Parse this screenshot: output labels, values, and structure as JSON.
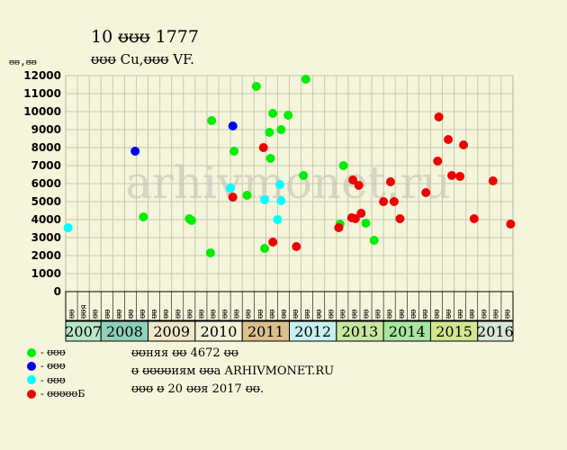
{
  "header": {
    "title": "10 ᵿᵿᵿ 1777",
    "subtitle": "ᵿᵿᵿ Cu,ᵿᵿᵿ VF.",
    "y_unit": "ᵿᵿ,ᵿᵿ"
  },
  "watermark": "arhivmonet.ru",
  "legend": [
    {
      "label": "- ᵿᵿᵿ",
      "color": "#00ee00",
      "icon": "dot-green"
    },
    {
      "label": "- ᵿᵿᵿ",
      "color": "#0000ee",
      "icon": "dot-blue"
    },
    {
      "label": "- ᵿᵿᵿ",
      "color": "#00ffff",
      "icon": "dot-cyan"
    },
    {
      "label": "- ᵿᵿᵿᵿᵿБ",
      "color": "#ee0000",
      "icon": "dot-red"
    }
  ],
  "notes": [
    "ᵿᵿняя ᵿᵿ 4672 ᵿᵿ",
    "ᵿ ᵿᵿᵿᵿиям ᵿᵿа ARHIVMONET.RU",
    "ᵿᵿᵿ ᵿ 20 ᵿᵿя 2017 ᵿᵿ."
  ],
  "chart_data": {
    "type": "scatter",
    "ylim": [
      0,
      12000
    ],
    "yticks": [
      0,
      1000,
      2000,
      3000,
      4000,
      5000,
      6000,
      7000,
      8000,
      9000,
      10000,
      11000,
      12000
    ],
    "grid": true,
    "x_slots": 38,
    "x_slot_labels": [
      "ᵿᵿ",
      "ᵿᵿя",
      "ᵿᵿ",
      "ᵿᵿ",
      "ᵿᵿ",
      "ᵿᵿ",
      "ᵿᵿ",
      "ᵿᵿ",
      "ᵿᵿ",
      "ᵿᵿ",
      "ᵿᵿ",
      "ᵿᵿ",
      "ᵿᵿ",
      "ᵿᵿ",
      "ᵿᵿ",
      "ᵿᵿ",
      "ᵿᵿ",
      "ᵿᵿ",
      "ᵿᵿ",
      "ᵿᵿ",
      "ᵿᵿ",
      "ᵿᵿ",
      "ᵿᵿ",
      "ᵿᵿ",
      "ᵿᵿ",
      "ᵿᵿ",
      "ᵿᵿ",
      "ᵿᵿ",
      "ᵿᵿ",
      "ᵿᵿ",
      "ᵿᵿ",
      "ᵿᵿ",
      "ᵿᵿ",
      "ᵿᵿ",
      "ᵿᵿ",
      "ᵿᵿ",
      "ᵿᵿ",
      "ᵿᵿ"
    ],
    "years": [
      {
        "label": "2007",
        "start": 0,
        "end": 3,
        "color": "#b8e6c8"
      },
      {
        "label": "2008",
        "start": 3,
        "end": 7,
        "color": "#8fd1b8"
      },
      {
        "label": "2009",
        "start": 7,
        "end": 11,
        "color": "#f0e6c8"
      },
      {
        "label": "2010",
        "start": 11,
        "end": 15,
        "color": "#f0f0d8"
      },
      {
        "label": "2011",
        "start": 15,
        "end": 19,
        "color": "#d9c08c"
      },
      {
        "label": "2012",
        "start": 19,
        "end": 23,
        "color": "#c8f0f0"
      },
      {
        "label": "2013",
        "start": 23,
        "end": 27,
        "color": "#c8e6a0"
      },
      {
        "label": "2014",
        "start": 27,
        "end": 31,
        "color": "#a8e6a0"
      },
      {
        "label": "2015",
        "start": 31,
        "end": 35,
        "color": "#d2e68c"
      },
      {
        "label": "2016",
        "start": 35,
        "end": 38,
        "color": "#d8e8d8"
      }
    ],
    "series": [
      {
        "color": "#00ee00",
        "points": [
          [
            6.6,
            4150
          ],
          [
            10.5,
            4050
          ],
          [
            10.7,
            3950
          ],
          [
            12.3,
            2150
          ],
          [
            12.4,
            9500
          ],
          [
            14.3,
            7800
          ],
          [
            15.4,
            5350
          ],
          [
            16.2,
            11400
          ],
          [
            16.9,
            2400
          ],
          [
            17.3,
            8850
          ],
          [
            17.4,
            7400
          ],
          [
            17.6,
            9900
          ],
          [
            18.3,
            9000
          ],
          [
            18.9,
            9800
          ],
          [
            20.2,
            6450
          ],
          [
            20.4,
            11800
          ],
          [
            23.3,
            3750
          ],
          [
            23.6,
            7000
          ],
          [
            25.5,
            3800
          ],
          [
            26.2,
            2850
          ]
        ]
      },
      {
        "color": "#0000ee",
        "points": [
          [
            5.9,
            7800
          ],
          [
            14.2,
            9200
          ]
        ]
      },
      {
        "color": "#00ffff",
        "points": [
          [
            0.2,
            3550
          ],
          [
            14.0,
            5750
          ],
          [
            16.9,
            5100
          ],
          [
            18.0,
            4000
          ],
          [
            18.2,
            5950
          ],
          [
            18.3,
            5050
          ]
        ]
      },
      {
        "color": "#ee0000",
        "points": [
          [
            14.2,
            5250
          ],
          [
            16.8,
            8000
          ],
          [
            17.6,
            2750
          ],
          [
            19.6,
            2500
          ],
          [
            23.2,
            3550
          ],
          [
            24.3,
            4100
          ],
          [
            24.4,
            6200
          ],
          [
            24.6,
            4050
          ],
          [
            24.9,
            5900
          ],
          [
            25.1,
            4350
          ],
          [
            27.0,
            5000
          ],
          [
            27.6,
            6100
          ],
          [
            27.9,
            5000
          ],
          [
            28.4,
            4050
          ],
          [
            30.6,
            5500
          ],
          [
            31.6,
            7250
          ],
          [
            31.7,
            9700
          ],
          [
            32.5,
            8450
          ],
          [
            32.8,
            6450
          ],
          [
            33.5,
            6400
          ],
          [
            33.8,
            8150
          ],
          [
            34.7,
            4050
          ],
          [
            36.3,
            6150
          ],
          [
            37.8,
            3750
          ]
        ]
      }
    ]
  }
}
